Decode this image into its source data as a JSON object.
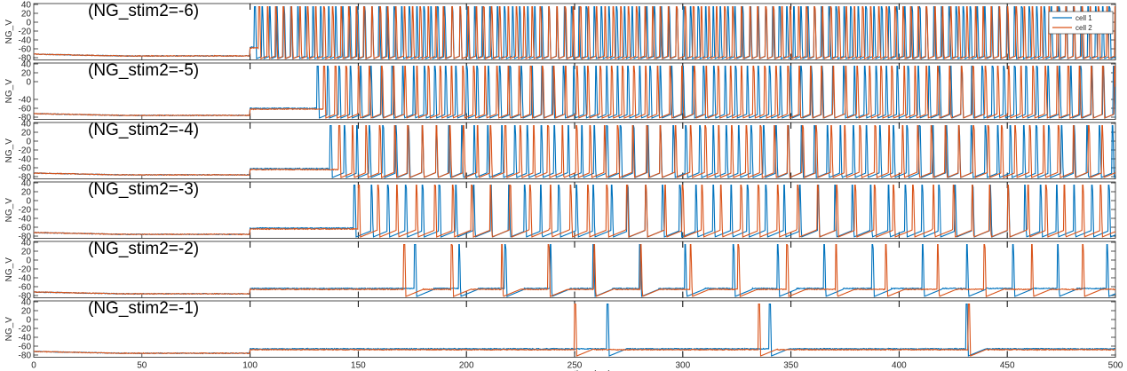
{
  "chart_data": {
    "type": "line",
    "xlabel": "time (ms)",
    "xlim": [
      0,
      500
    ],
    "xticks": [
      0,
      50,
      100,
      150,
      200,
      250,
      300,
      350,
      400,
      450,
      500
    ],
    "legend": {
      "placement": "top-right",
      "entries": [
        {
          "name": "cell 1",
          "color": "#0072BD"
        },
        {
          "name": "cell 2",
          "color": "#D95319"
        }
      ]
    },
    "colors": {
      "cell1": "#0072BD",
      "cell2": "#D95319",
      "marker": "#000000"
    },
    "stim_marker_times": [
      100,
      150,
      200,
      250,
      300,
      350,
      400,
      450
    ],
    "panels": [
      {
        "title": "(NG_stim2=-6)",
        "ylabel": "NG_V",
        "ylim": [
          -85,
          42
        ],
        "yticks": [
          -80,
          -60,
          -40,
          -20,
          0,
          20,
          40
        ],
        "series": [
          {
            "name": "cell 1",
            "onset": 102,
            "isi": 3.4,
            "baseline": -72,
            "plateau": -56
          },
          {
            "name": "cell 2",
            "onset": 104,
            "isi": 3.7,
            "baseline": -72,
            "plateau": -58
          }
        ]
      },
      {
        "title": "(NG_stim2=-5)",
        "ylabel": "NG_V",
        "ylim": [
          -85,
          42
        ],
        "yticks": [
          -80,
          -60,
          -40,
          0,
          20,
          40
        ],
        "series": [
          {
            "name": "cell 1",
            "onset": 131,
            "isi": 5.0,
            "baseline": -72,
            "plateau": -60
          },
          {
            "name": "cell 2",
            "onset": 134,
            "isi": 5.4,
            "baseline": -72,
            "plateau": -62
          }
        ]
      },
      {
        "title": "(NG_stim2=-4)",
        "ylabel": "NG_V",
        "ylim": [
          -85,
          42
        ],
        "yticks": [
          -80,
          -60,
          -40,
          -20,
          0,
          20,
          40
        ],
        "series": [
          {
            "name": "cell 1",
            "onset": 137,
            "isi": 6.1,
            "baseline": -72,
            "plateau": -62
          },
          {
            "name": "cell 2",
            "onset": 141,
            "isi": 6.6,
            "baseline": -72,
            "plateau": -64
          }
        ]
      },
      {
        "title": "(NG_stim2=-3)",
        "ylabel": "NG_V",
        "ylim": [
          -85,
          42
        ],
        "yticks": [
          -80,
          -60,
          -40,
          -20,
          0,
          20,
          40
        ],
        "series": [
          {
            "name": "cell 1",
            "onset": 148,
            "isi": 7.9,
            "baseline": -72,
            "plateau": -62
          },
          {
            "name": "cell 2",
            "onset": 150,
            "isi": 8.7,
            "baseline": -72,
            "plateau": -64
          }
        ]
      },
      {
        "title": "(NG_stim2=-2)",
        "ylabel": "NG_V",
        "ylim": [
          -85,
          42
        ],
        "yticks": [
          -80,
          -60,
          -40,
          -20,
          0,
          20,
          40
        ],
        "series": [
          {
            "name": "cell 1",
            "onset": 176,
            "isi": 21.5,
            "baseline": -72,
            "plateau": -64
          },
          {
            "name": "cell 2",
            "onset": 171,
            "isi": 22.5,
            "baseline": -72,
            "plateau": -66
          }
        ]
      },
      {
        "title": "(NG_stim2=-1)",
        "ylabel": "NG_V",
        "ylim": [
          -85,
          42
        ],
        "yticks": [
          -80,
          -60,
          -40,
          -20,
          0,
          20,
          40
        ],
        "series": [
          {
            "name": "cell 1",
            "spikes": [
              265,
              340,
              431
            ],
            "baseline": -72,
            "plateau": -66
          },
          {
            "name": "cell 2",
            "spikes": [
              250,
              335,
              432
            ],
            "baseline": -72,
            "plateau": -68
          }
        ]
      }
    ]
  }
}
